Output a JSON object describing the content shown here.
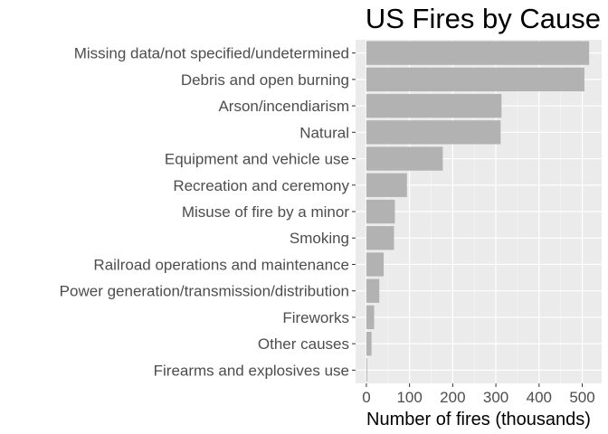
{
  "chart_data": {
    "type": "bar",
    "orientation": "horizontal",
    "title": "US Fires by Cause",
    "xlabel": "Number of fires (thousands)",
    "ylabel": "",
    "categories": [
      "Missing data/not specified/undetermined",
      "Debris and open burning",
      "Arson/incendiarism",
      "Natural",
      "Equipment and vehicle use",
      "Recreation and ceremony",
      "Misuse of fire by a minor",
      "Smoking",
      "Railroad operations and maintenance",
      "Power generation/transmission/distribution",
      "Fireworks",
      "Other causes",
      "Firearms and explosives use"
    ],
    "values": [
      516,
      505,
      313,
      311,
      177,
      94,
      66,
      64,
      40,
      30,
      18,
      12,
      2
    ],
    "xlim": [
      -25,
      545
    ],
    "xticks": [
      0,
      100,
      200,
      300,
      400,
      500
    ],
    "xtick_labels": [
      "0",
      "100",
      "200",
      "300",
      "400",
      "500"
    ],
    "grid": true,
    "legend": "none",
    "colors": {
      "bar": "#b2b2b2",
      "panel": "#ebebeb",
      "grid_major": "#ffffff",
      "text": "#4d4d4d"
    }
  }
}
